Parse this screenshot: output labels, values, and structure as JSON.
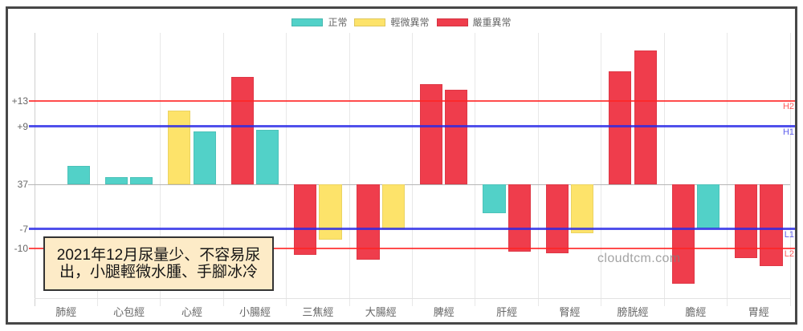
{
  "chart_data": {
    "type": "bar",
    "title": "",
    "xlabel": "",
    "ylabel": "",
    "categories": [
      "肺經",
      "心包經",
      "心經",
      "小腸經",
      "三焦經",
      "大腸經",
      "脾經",
      "肝經",
      "腎經",
      "膀胱經",
      "膽經",
      "胃經"
    ],
    "baseline_label": "37",
    "series": [
      {
        "values": [
          0,
          1.1,
          11.5,
          16.7,
          -11.0,
          -11.7,
          15.6,
          -4.5,
          -10.7,
          17.6,
          -15.5,
          -11.5
        ],
        "status": [
          "normal",
          "normal",
          "mild",
          "severe",
          "severe",
          "severe",
          "severe",
          "normal",
          "severe",
          "severe",
          "severe",
          "severe"
        ]
      },
      {
        "values": [
          2.9,
          1.1,
          8.2,
          8.5,
          -8.6,
          -7.0,
          14.7,
          -10.5,
          -7.6,
          20.8,
          -6.9,
          -12.7
        ],
        "status": [
          "normal",
          "normal",
          "normal",
          "normal",
          "mild",
          "mild",
          "severe",
          "severe",
          "mild",
          "severe",
          "normal",
          "severe"
        ]
      }
    ],
    "y_ticks": [
      {
        "value": 13,
        "label": "+13"
      },
      {
        "value": 9,
        "label": "+9"
      },
      {
        "value": 0,
        "label": "37"
      },
      {
        "value": -7,
        "label": "-7"
      },
      {
        "value": -10,
        "label": "-10"
      }
    ],
    "reference_lines": [
      {
        "label": "H2",
        "value": 13,
        "color": "#ff2424",
        "width": 2
      },
      {
        "label": "H1",
        "value": 9,
        "color": "#2a2ae6",
        "width": 3
      },
      {
        "label": "L1",
        "value": -7,
        "color": "#2a2ae6",
        "width": 3
      },
      {
        "label": "L2",
        "value": -10,
        "color": "#ff2424",
        "width": 2
      }
    ],
    "legend": [
      {
        "key": "normal",
        "label": "正常"
      },
      {
        "key": "mild",
        "label": "輕微異常"
      },
      {
        "key": "severe",
        "label": "嚴重異常"
      }
    ],
    "legend_position": "top",
    "colors": {
      "normal": "#52d1c8",
      "mild": "#fde36a",
      "severe": "#ef3d4c"
    },
    "ylim": [
      -17.75,
      23.6
    ],
    "grid": {
      "vertical": true,
      "horizontal": false
    },
    "annotation": [
      "2021年12月尿量少、不容易尿",
      "出，小腿輕微水腫、手腳冰冷"
    ],
    "watermark": "cloudtcm.com"
  }
}
